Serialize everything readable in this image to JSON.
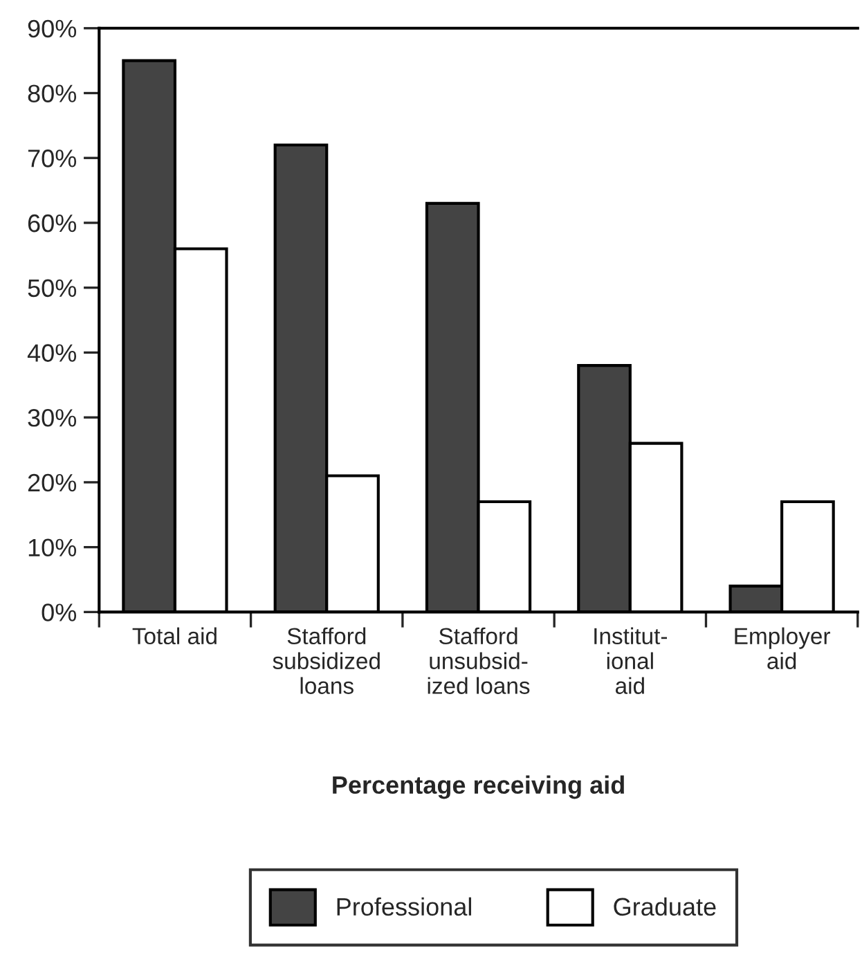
{
  "chart_data": {
    "type": "bar",
    "xlabel": "Percentage receiving aid",
    "categories": [
      "Total aid",
      "Stafford\nsubsidized\nloans",
      "Stafford\nunsubsid-\nized loans",
      "Institut-\nional\naid",
      "Employer\naid"
    ],
    "series": [
      {
        "name": "Professional",
        "color": "#444444",
        "values": [
          85,
          72,
          63,
          38,
          4
        ]
      },
      {
        "name": "Graduate",
        "color": "#ffffff",
        "values": [
          56,
          21,
          17,
          26,
          17
        ]
      }
    ],
    "ylim": [
      0,
      90
    ],
    "yticks": [
      {
        "value": 0,
        "label": "0%"
      },
      {
        "value": 10,
        "label": "10%"
      },
      {
        "value": 20,
        "label": "20%"
      },
      {
        "value": 30,
        "label": "30%"
      },
      {
        "value": 40,
        "label": "40%"
      },
      {
        "value": 50,
        "label": "50%"
      },
      {
        "value": 60,
        "label": "60%"
      },
      {
        "value": 70,
        "label": "70%"
      },
      {
        "value": 80,
        "label": "80%"
      },
      {
        "value": 90,
        "label": "90%"
      }
    ],
    "grid": false,
    "legend": "bottom"
  }
}
